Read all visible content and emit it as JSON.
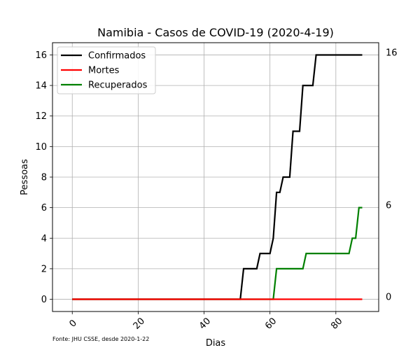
{
  "chart_data": {
    "type": "line",
    "title": "Namibia - Casos de COVID-19 (2020-4-19)",
    "xlabel": "Dias",
    "ylabel": "Pessoas",
    "xlim": [
      -6,
      93
    ],
    "ylim": [
      -0.8,
      16.8
    ],
    "xticks": [
      0,
      20,
      40,
      60,
      80
    ],
    "yticks": [
      0,
      2,
      4,
      6,
      8,
      10,
      12,
      14,
      16
    ],
    "grid": true,
    "legend_position": "top-left",
    "source_note": "Fonte: JHU CSSE, desde 2020-1-22",
    "right_labels": [
      "16",
      "6",
      "0"
    ],
    "right_label_values": [
      16,
      6,
      0
    ],
    "series": [
      {
        "name": "Confirmados",
        "color": "#000000",
        "x": [
          0,
          51,
          52,
          56,
          57,
          60,
          61,
          62,
          63,
          64,
          66,
          67,
          69,
          70,
          72,
          73,
          74,
          88
        ],
        "y": [
          0,
          0,
          2,
          2,
          3,
          3,
          4,
          7,
          7,
          8,
          8,
          11,
          11,
          14,
          14,
          14,
          16,
          16
        ]
      },
      {
        "name": "Mortes",
        "color": "#ff0000",
        "x": [
          0,
          88
        ],
        "y": [
          0,
          0
        ]
      },
      {
        "name": "Recuperados",
        "color": "#008000",
        "x": [
          0,
          61,
          62,
          70,
          71,
          84,
          85,
          86,
          87,
          88
        ],
        "y": [
          0,
          0,
          2,
          2,
          3,
          3,
          4,
          4,
          6,
          6
        ]
      }
    ]
  }
}
